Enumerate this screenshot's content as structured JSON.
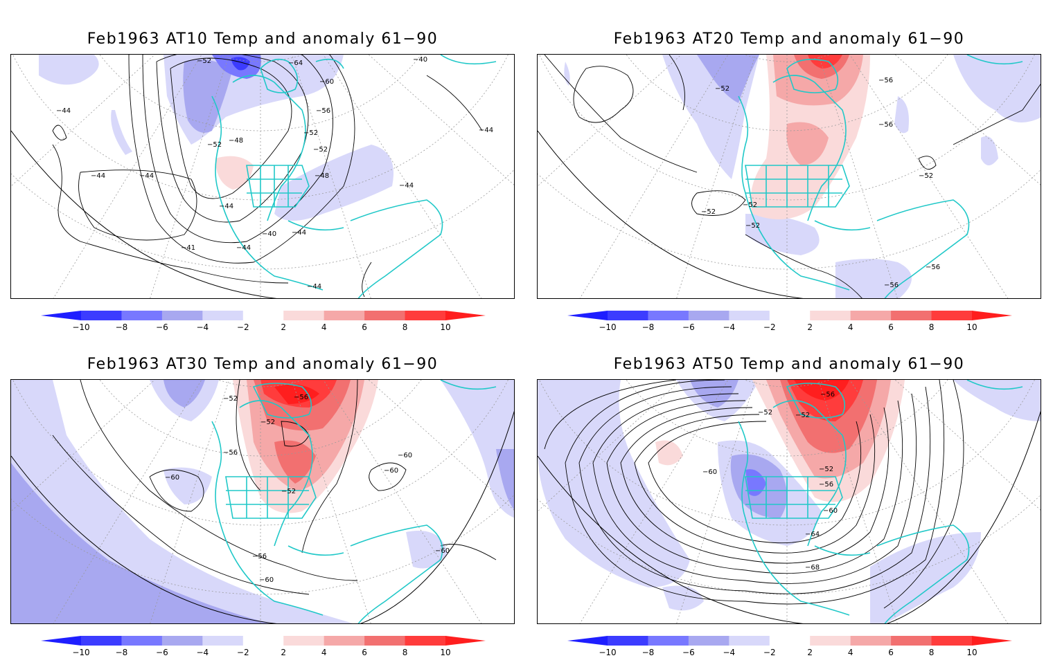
{
  "panels": [
    {
      "title": "Feb1963 AT10 Temp and anomaly 61−90",
      "contour_labels": [
        "−52",
        "−64",
        "−60",
        "−56",
        "−52",
        "−52",
        "−48",
        "−52",
        "−44",
        "−44",
        "−48",
        "−44",
        "−44",
        "−40",
        "−44",
        "−41",
        "−44",
        "−44",
        "−40",
        "−44",
        "−44"
      ]
    },
    {
      "title": "Feb1963 AT20 Temp and anomaly 61−90",
      "contour_labels": [
        "−52",
        "−56",
        "−56",
        "−52",
        "−52",
        "−52",
        "−52",
        "−56",
        "−56"
      ]
    },
    {
      "title": "Feb1963 AT30 Temp and anomaly 61−90",
      "contour_labels": [
        "−52",
        "−56",
        "−52",
        "−56",
        "−60",
        "−60",
        "−60",
        "−52",
        "−56",
        "−60",
        "−60"
      ]
    },
    {
      "title": "Feb1963 AT50 Temp and anomaly 61−90",
      "contour_labels": [
        "−56",
        "−52",
        "−52",
        "−60",
        "−52",
        "−56",
        "−60",
        "−64",
        "−68"
      ]
    }
  ],
  "colorbar": {
    "ticks": [
      "−10",
      "−8",
      "−6",
      "−4",
      "−2",
      "2",
      "4",
      "6",
      "8",
      "10"
    ],
    "colors": [
      "#1e1eff",
      "#3c3cff",
      "#7878ff",
      "#a8a8f0",
      "#d8d8fa",
      "#ffffff",
      "#fadada",
      "#f5a8a8",
      "#f27070",
      "#ff3c3c",
      "#ff1e1e"
    ]
  }
}
